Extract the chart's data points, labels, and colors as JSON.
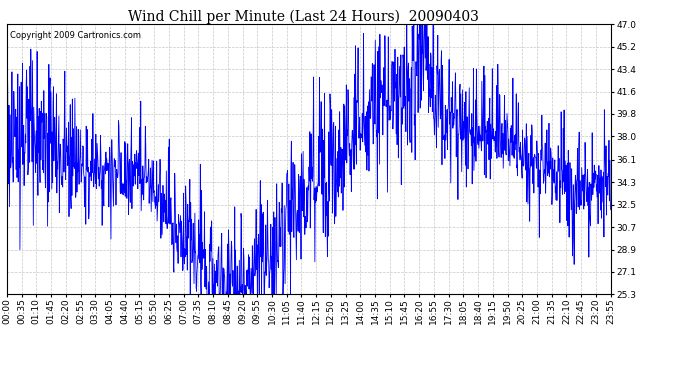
{
  "title": "Wind Chill per Minute (Last 24 Hours)  20090403",
  "copyright_text": "Copyright 2009 Cartronics.com",
  "line_color": "#0000ff",
  "bg_color": "#ffffff",
  "plot_bg_color": "#ffffff",
  "grid_color": "#c8c8c8",
  "ylim": [
    25.3,
    47.0
  ],
  "yticks": [
    25.3,
    27.1,
    28.9,
    30.7,
    32.5,
    34.3,
    36.1,
    38.0,
    39.8,
    41.6,
    43.4,
    45.2,
    47.0
  ],
  "xtick_labels": [
    "00:00",
    "00:35",
    "01:10",
    "01:45",
    "02:20",
    "02:55",
    "03:30",
    "04:05",
    "04:40",
    "05:15",
    "05:50",
    "06:25",
    "07:00",
    "07:35",
    "08:10",
    "08:45",
    "09:20",
    "09:55",
    "10:30",
    "11:05",
    "11:40",
    "12:15",
    "12:50",
    "13:25",
    "14:00",
    "14:35",
    "15:10",
    "15:45",
    "16:20",
    "16:55",
    "17:30",
    "18:05",
    "18:40",
    "19:15",
    "19:50",
    "20:25",
    "21:00",
    "21:35",
    "22:10",
    "22:45",
    "23:20",
    "23:55"
  ],
  "line_width": 0.6,
  "title_fontsize": 10,
  "tick_fontsize": 6.5,
  "copyright_fontsize": 6
}
